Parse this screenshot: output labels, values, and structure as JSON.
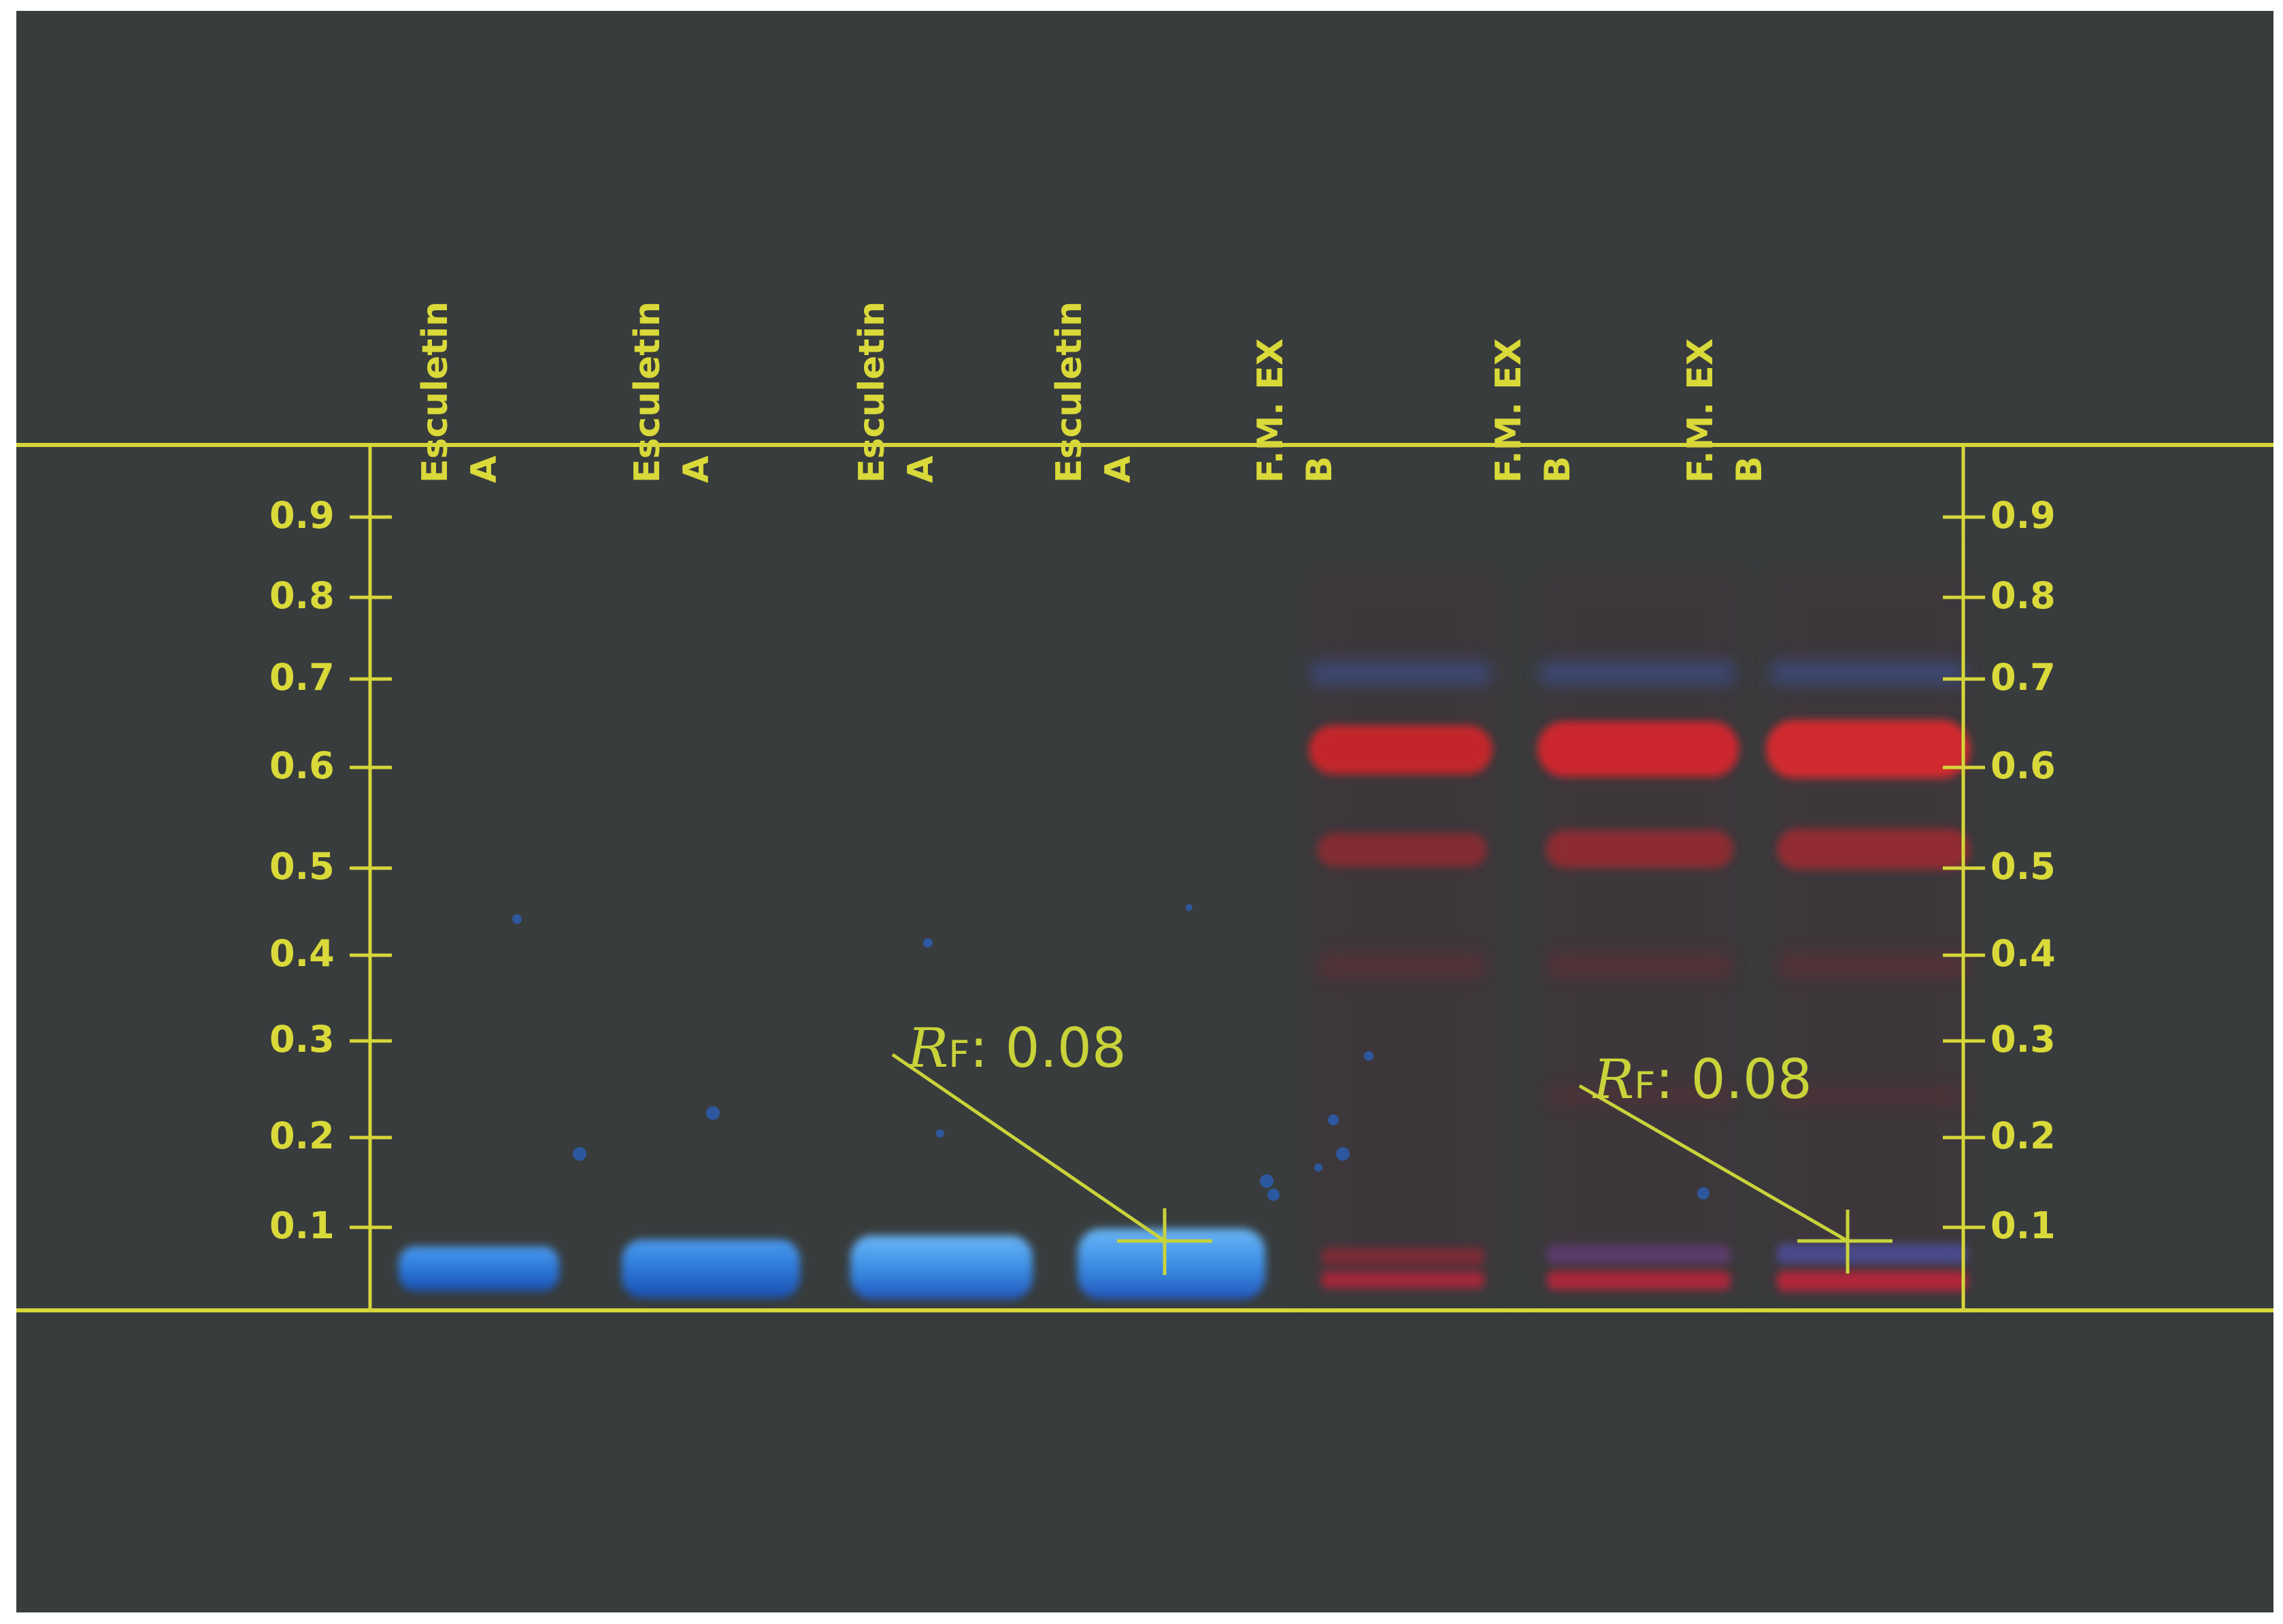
{
  "lanes": [
    {
      "line1": "A",
      "line2": "Esculetin"
    },
    {
      "line1": "A",
      "line2": "Esculetin"
    },
    {
      "line1": "A",
      "line2": "Esculetin"
    },
    {
      "line1": "A",
      "line2": "Esculetin"
    },
    {
      "line1": "B",
      "line2": "F.M. EX"
    },
    {
      "line1": "B",
      "line2": "F.M. EX"
    },
    {
      "line1": "B",
      "line2": "F.M. EX"
    }
  ],
  "rf_axis": {
    "ticks": [
      "0.9",
      "0.8",
      "0.7",
      "0.6",
      "0.5",
      "0.4",
      "0.3",
      "0.2",
      "0.1"
    ]
  },
  "annotations": [
    {
      "symbol": "R",
      "sub": "F",
      "text": ": 0.08",
      "rf": 0.08
    },
    {
      "symbol": "R",
      "sub": "F",
      "text": ": 0.08",
      "rf": 0.08
    }
  ],
  "colors": {
    "background": "#383c3c",
    "annotation": "#d9d93a",
    "esculetin_band": "#2f7fe0",
    "extract_band": "#c8252b"
  }
}
